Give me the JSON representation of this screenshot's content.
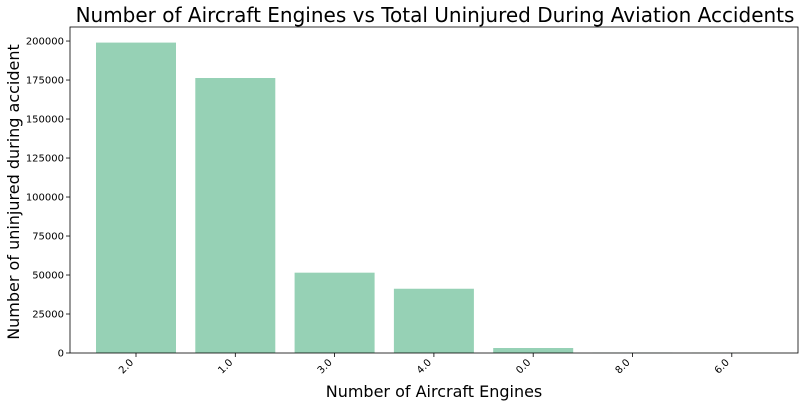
{
  "chart_data": {
    "type": "bar",
    "title": "Number of Aircraft Engines vs Total Uninjured During Aviation Accidents",
    "xlabel": "Number of Aircraft Engines",
    "ylabel": "Number of uninjured during accident",
    "categories": [
      "2.0",
      "1.0",
      "3.0",
      "4.0",
      "0.0",
      "8.0",
      "6.0"
    ],
    "values": [
      199000,
      176300,
      51500,
      41200,
      3200,
      150,
      100
    ],
    "ylim": [
      0,
      209000
    ],
    "yticks": [
      0,
      25000,
      50000,
      75000,
      100000,
      125000,
      150000,
      175000,
      200000
    ],
    "bar_color": "#96d1b5",
    "grid": false,
    "legend": "none"
  }
}
